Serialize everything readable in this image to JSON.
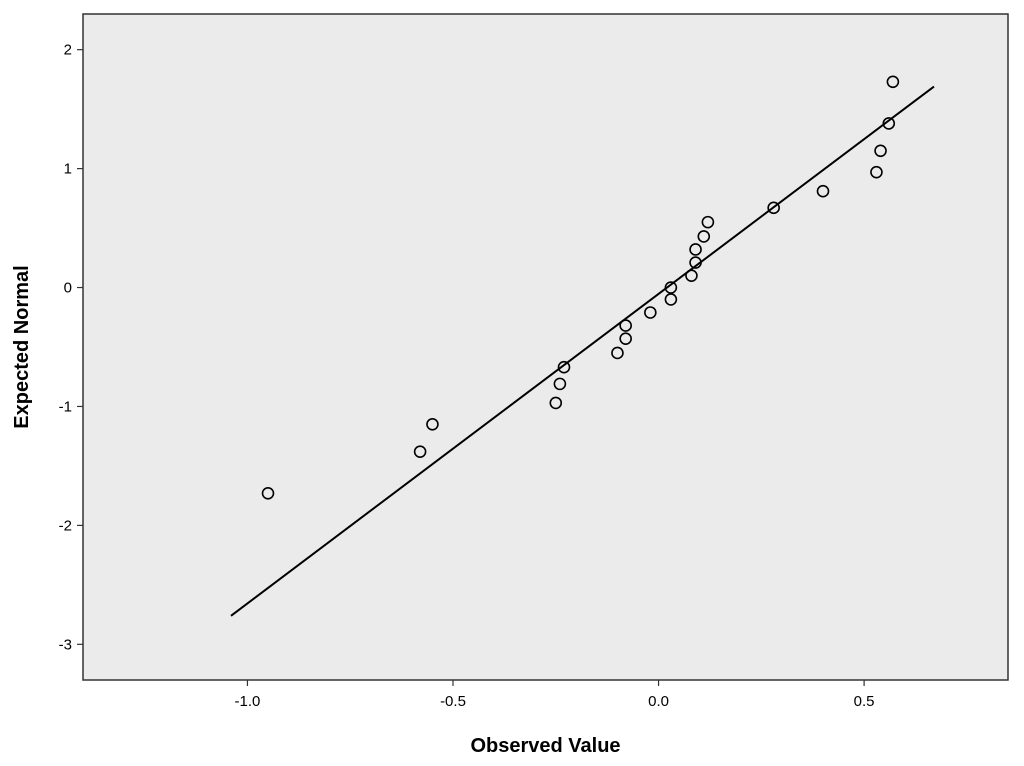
{
  "chart_data": {
    "type": "scatter",
    "xlabel": "Observed Value",
    "ylabel": "Expected Normal",
    "xlim": [
      -1.4,
      0.85
    ],
    "ylim": [
      -3.3,
      2.3
    ],
    "xticks": [
      -1.0,
      -0.5,
      0.0,
      0.5
    ],
    "xtick_labels": [
      "-1.0",
      "-0.5",
      "0.0",
      "0.5"
    ],
    "yticks": [
      -3,
      -2,
      -1,
      0,
      1,
      2
    ],
    "ytick_labels": [
      "-3",
      "-2",
      "-1",
      "0",
      "1",
      "2"
    ],
    "grid": false,
    "legend": "none",
    "colors": {
      "plot_background": "#ebebeb",
      "frame": "#333333",
      "points": "#000000",
      "reference_line": "#000000"
    },
    "points": [
      {
        "x": -0.95,
        "y": -1.73
      },
      {
        "x": -0.58,
        "y": -1.38
      },
      {
        "x": -0.55,
        "y": -1.15
      },
      {
        "x": -0.25,
        "y": -0.97
      },
      {
        "x": -0.24,
        "y": -0.81
      },
      {
        "x": -0.23,
        "y": -0.67
      },
      {
        "x": -0.1,
        "y": -0.55
      },
      {
        "x": -0.08,
        "y": -0.43
      },
      {
        "x": -0.08,
        "y": -0.32
      },
      {
        "x": -0.02,
        "y": -0.21
      },
      {
        "x": 0.03,
        "y": -0.1
      },
      {
        "x": 0.03,
        "y": 0.0
      },
      {
        "x": 0.08,
        "y": 0.1
      },
      {
        "x": 0.09,
        "y": 0.21
      },
      {
        "x": 0.09,
        "y": 0.32
      },
      {
        "x": 0.11,
        "y": 0.43
      },
      {
        "x": 0.12,
        "y": 0.55
      },
      {
        "x": 0.28,
        "y": 0.67
      },
      {
        "x": 0.4,
        "y": 0.81
      },
      {
        "x": 0.53,
        "y": 0.97
      },
      {
        "x": 0.54,
        "y": 1.15
      },
      {
        "x": 0.56,
        "y": 1.38
      },
      {
        "x": 0.57,
        "y": 1.73
      }
    ],
    "reference_line": {
      "x": [
        -1.04,
        0.67
      ],
      "y": [
        -2.76,
        1.69
      ]
    }
  }
}
